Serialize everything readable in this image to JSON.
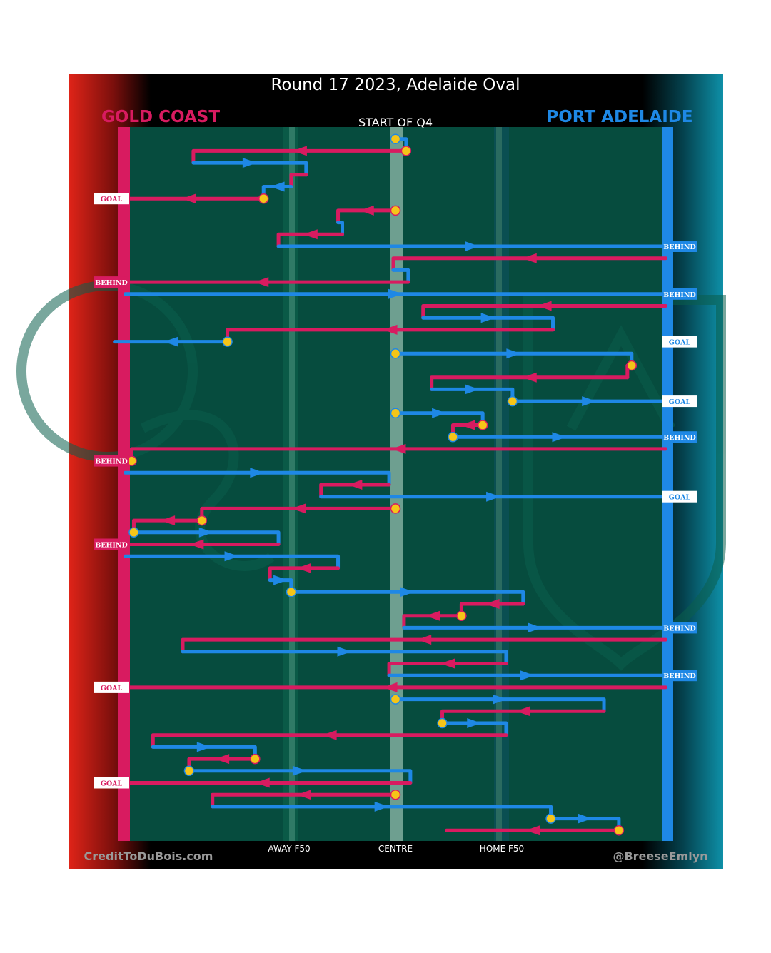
{
  "header": {
    "title": "Round 17 2023, Adelaide Oval",
    "period": "START OF Q4",
    "team_left": "GOLD COAST",
    "team_right": "PORT ADELAIDE"
  },
  "footer": {
    "credit_left": "CreditToDuBois.com",
    "credit_right": "@BreeseEmlyn"
  },
  "colors": {
    "gold_coast": "#d81b60",
    "port_adelaide": "#1e88e5",
    "field": "#064c3e",
    "start_marker": "#f5c518"
  },
  "chart_data": {
    "type": "line",
    "title": "Round 17 2023, Adelaide Oval",
    "subtitle": "START OF Q4",
    "x_axis": {
      "ticks": [
        "AWAY F50",
        "CENTRE",
        "HOME F50"
      ],
      "tick_values": [
        -0.5,
        0,
        0.5
      ],
      "range": [
        -1.4,
        1.3
      ]
    },
    "teams": {
      "GC": "GOLD COAST",
      "PA": "PORT ADELAIDE"
    },
    "chains": [
      {
        "team": "PA",
        "start": true,
        "points": [
          [
            0,
            1
          ],
          [
            0.05,
            1
          ],
          [
            0.05,
            2
          ]
        ]
      },
      {
        "team": "GC",
        "start": true,
        "points": [
          [
            0.05,
            2
          ],
          [
            -0.95,
            2
          ],
          [
            -0.95,
            3
          ]
        ]
      },
      {
        "team": "PA",
        "points": [
          [
            -0.95,
            3
          ],
          [
            -0.42,
            3
          ],
          [
            -0.42,
            4
          ]
        ]
      },
      {
        "team": "GC",
        "points": [
          [
            -0.42,
            4
          ],
          [
            -0.49,
            4
          ],
          [
            -0.49,
            5
          ]
        ]
      },
      {
        "team": "PA",
        "points": [
          [
            -0.49,
            5
          ],
          [
            -0.62,
            5
          ],
          [
            -0.62,
            6
          ]
        ]
      },
      {
        "team": "GC",
        "start": true,
        "points": [
          [
            -0.62,
            6
          ],
          [
            -1.32,
            6
          ]
        ],
        "outcome": "GOAL"
      },
      {
        "team": "GC",
        "start": true,
        "points": [
          [
            0,
            7
          ],
          [
            -0.27,
            7
          ],
          [
            -0.27,
            8
          ]
        ]
      },
      {
        "team": "PA",
        "points": [
          [
            -0.27,
            8
          ],
          [
            -0.25,
            8
          ],
          [
            -0.25,
            9
          ]
        ]
      },
      {
        "team": "GC",
        "points": [
          [
            -0.25,
            9
          ],
          [
            -0.55,
            9
          ],
          [
            -0.55,
            10
          ]
        ]
      },
      {
        "team": "PA",
        "points": [
          [
            -0.55,
            10
          ],
          [
            1.27,
            10
          ]
        ],
        "outcome": "BEHIND"
      },
      {
        "team": "GC",
        "points": [
          [
            1.27,
            11
          ],
          [
            -0.01,
            11
          ],
          [
            -0.01,
            12
          ]
        ]
      },
      {
        "team": "PA",
        "points": [
          [
            -0.01,
            12
          ],
          [
            0.06,
            12
          ],
          [
            0.06,
            13
          ]
        ]
      },
      {
        "team": "GC",
        "points": [
          [
            0.06,
            13
          ],
          [
            -1.32,
            13
          ]
        ],
        "outcome": "BEHIND"
      },
      {
        "team": "PA",
        "points": [
          [
            -1.27,
            14
          ],
          [
            1.27,
            14
          ]
        ],
        "outcome": "BEHIND"
      },
      {
        "team": "GC",
        "points": [
          [
            1.27,
            15
          ],
          [
            0.13,
            15
          ],
          [
            0.13,
            16
          ]
        ]
      },
      {
        "team": "PA",
        "points": [
          [
            0.13,
            16
          ],
          [
            0.74,
            16
          ],
          [
            0.74,
            17
          ]
        ]
      },
      {
        "team": "GC",
        "points": [
          [
            0.74,
            17
          ],
          [
            -0.79,
            17
          ],
          [
            -0.79,
            18
          ]
        ]
      },
      {
        "team": "PA",
        "start": true,
        "points": [
          [
            -0.79,
            18
          ],
          [
            -1.32,
            18
          ]
        ],
        "outcome": "GOAL"
      },
      {
        "team": "PA",
        "start": true,
        "points": [
          [
            0,
            19
          ],
          [
            1.11,
            19
          ],
          [
            1.11,
            20
          ]
        ]
      },
      {
        "team": "GC",
        "start": true,
        "points": [
          [
            1.11,
            20
          ],
          [
            1.09,
            20
          ],
          [
            1.09,
            21
          ]
        ]
      },
      {
        "team": "GC",
        "points": [
          [
            1.09,
            21
          ],
          [
            0.17,
            21
          ],
          [
            0.17,
            22
          ]
        ]
      },
      {
        "team": "PA",
        "points": [
          [
            0.17,
            22
          ],
          [
            0.55,
            22
          ],
          [
            0.55,
            23
          ]
        ]
      },
      {
        "team": "PA",
        "start": true,
        "points": [
          [
            0.55,
            23
          ],
          [
            1.27,
            23
          ]
        ],
        "outcome": "GOAL"
      },
      {
        "team": "PA",
        "start": true,
        "points": [
          [
            0,
            24
          ],
          [
            0.41,
            24
          ],
          [
            0.41,
            25
          ]
        ]
      },
      {
        "team": "GC",
        "start": true,
        "points": [
          [
            0.41,
            25
          ],
          [
            0.27,
            25
          ],
          [
            0.27,
            26
          ]
        ]
      },
      {
        "team": "PA",
        "start": true,
        "points": [
          [
            0.27,
            26
          ],
          [
            1.27,
            26
          ]
        ],
        "outcome": "BEHIND"
      },
      {
        "team": "GC",
        "points": [
          [
            1.27,
            27
          ],
          [
            -1.24,
            27
          ],
          [
            -1.24,
            28
          ]
        ]
      },
      {
        "team": "GC",
        "start": true,
        "points": [
          [
            -1.24,
            28
          ],
          [
            -1.32,
            28
          ]
        ],
        "outcome": "BEHIND"
      },
      {
        "team": "PA",
        "points": [
          [
            -1.27,
            29
          ],
          [
            -0.03,
            29
          ],
          [
            -0.03,
            30
          ]
        ]
      },
      {
        "team": "GC",
        "points": [
          [
            -0.03,
            30
          ],
          [
            -0.35,
            30
          ],
          [
            -0.35,
            31
          ]
        ]
      },
      {
        "team": "PA",
        "points": [
          [
            -0.35,
            31
          ],
          [
            1.27,
            31
          ]
        ],
        "outcome": "GOAL"
      },
      {
        "team": "GC",
        "start": true,
        "points": [
          [
            0,
            32
          ],
          [
            -0.91,
            32
          ],
          [
            -0.91,
            33
          ]
        ]
      },
      {
        "team": "GC",
        "start": true,
        "points": [
          [
            -0.91,
            33
          ],
          [
            -1.23,
            33
          ],
          [
            -1.23,
            34
          ]
        ]
      },
      {
        "team": "PA",
        "start": true,
        "points": [
          [
            -1.23,
            34
          ],
          [
            -0.55,
            34
          ],
          [
            -0.55,
            35
          ]
        ]
      },
      {
        "team": "GC",
        "points": [
          [
            -0.55,
            35
          ],
          [
            -1.32,
            35
          ]
        ],
        "outcome": "BEHIND"
      },
      {
        "team": "PA",
        "points": [
          [
            -1.27,
            36
          ],
          [
            -0.27,
            36
          ],
          [
            -0.27,
            37
          ]
        ]
      },
      {
        "team": "GC",
        "points": [
          [
            -0.27,
            37
          ],
          [
            -0.59,
            37
          ],
          [
            -0.59,
            38
          ]
        ]
      },
      {
        "team": "PA",
        "points": [
          [
            -0.59,
            38
          ],
          [
            -0.49,
            38
          ],
          [
            -0.49,
            39
          ]
        ]
      },
      {
        "team": "PA",
        "start": true,
        "points": [
          [
            -0.49,
            39
          ],
          [
            0.6,
            39
          ],
          [
            0.6,
            40
          ]
        ]
      },
      {
        "team": "GC",
        "points": [
          [
            0.6,
            40
          ],
          [
            0.31,
            40
          ],
          [
            0.31,
            41
          ]
        ]
      },
      {
        "team": "GC",
        "start": true,
        "points": [
          [
            0.31,
            41
          ],
          [
            0.04,
            41
          ],
          [
            0.04,
            42
          ]
        ]
      },
      {
        "team": "PA",
        "points": [
          [
            0.04,
            42
          ],
          [
            1.27,
            42
          ]
        ],
        "outcome": "BEHIND"
      },
      {
        "team": "GC",
        "points": [
          [
            1.27,
            43
          ],
          [
            -1.0,
            43
          ],
          [
            -1.0,
            44
          ]
        ]
      },
      {
        "team": "PA",
        "points": [
          [
            -1.0,
            44
          ],
          [
            0.52,
            44
          ],
          [
            0.52,
            45
          ]
        ]
      },
      {
        "team": "GC",
        "points": [
          [
            0.52,
            45
          ],
          [
            -0.03,
            45
          ],
          [
            -0.03,
            46
          ]
        ]
      },
      {
        "team": "PA",
        "points": [
          [
            -0.03,
            46
          ],
          [
            1.27,
            46
          ]
        ],
        "outcome": "BEHIND"
      },
      {
        "team": "GC",
        "points": [
          [
            1.27,
            47
          ],
          [
            -1.32,
            47
          ]
        ],
        "outcome": "GOAL"
      },
      {
        "team": "PA",
        "start": true,
        "points": [
          [
            0,
            48
          ],
          [
            0.98,
            48
          ],
          [
            0.98,
            49
          ]
        ]
      },
      {
        "team": "GC",
        "points": [
          [
            0.98,
            49
          ],
          [
            0.22,
            49
          ],
          [
            0.22,
            50
          ]
        ]
      },
      {
        "team": "PA",
        "start": true,
        "points": [
          [
            0.22,
            50
          ],
          [
            0.52,
            50
          ],
          [
            0.52,
            51
          ]
        ]
      },
      {
        "team": "GC",
        "points": [
          [
            0.52,
            51
          ],
          [
            -1.14,
            51
          ],
          [
            -1.14,
            52
          ]
        ]
      },
      {
        "team": "PA",
        "points": [
          [
            -1.14,
            52
          ],
          [
            -0.66,
            52
          ],
          [
            -0.66,
            53
          ]
        ]
      },
      {
        "team": "GC",
        "start": true,
        "points": [
          [
            -0.66,
            53
          ],
          [
            -0.97,
            53
          ],
          [
            -0.97,
            54
          ]
        ]
      },
      {
        "team": "PA",
        "start": true,
        "points": [
          [
            -0.97,
            54
          ],
          [
            0.07,
            54
          ],
          [
            0.07,
            55
          ]
        ]
      },
      {
        "team": "GC",
        "points": [
          [
            0.07,
            55
          ],
          [
            -1.32,
            55
          ]
        ],
        "outcome": "GOAL"
      },
      {
        "team": "GC",
        "start": true,
        "points": [
          [
            0,
            56
          ],
          [
            -0.86,
            56
          ],
          [
            -0.86,
            57
          ]
        ]
      },
      {
        "team": "PA",
        "points": [
          [
            -0.86,
            57
          ],
          [
            0.73,
            57
          ],
          [
            0.73,
            58
          ]
        ]
      },
      {
        "team": "PA",
        "start": true,
        "points": [
          [
            0.73,
            58
          ],
          [
            1.05,
            58
          ],
          [
            1.05,
            59
          ]
        ]
      },
      {
        "team": "GC",
        "start": true,
        "points": [
          [
            1.05,
            59
          ],
          [
            0.24,
            59
          ]
        ]
      }
    ]
  }
}
